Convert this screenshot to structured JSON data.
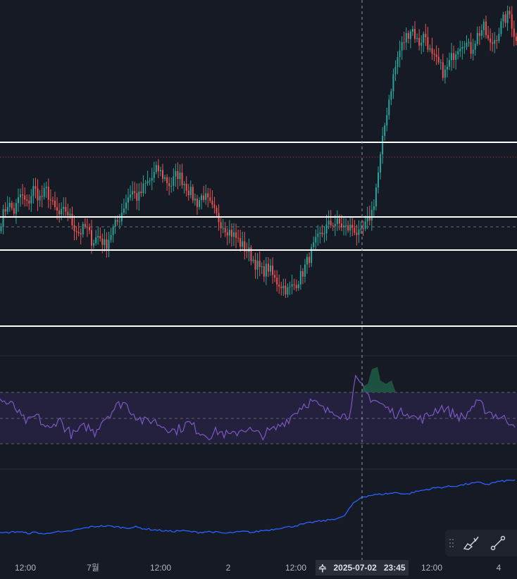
{
  "chart_data": [
    {
      "type": "candlestick",
      "title": "",
      "x_ticks": [
        "12:00",
        "7월",
        "12:00",
        "2",
        "12:00",
        "12:00",
        "4"
      ],
      "price_path": [
        50,
        58,
        54,
        62,
        57,
        65,
        60,
        64,
        56,
        52,
        55,
        48,
        44,
        47,
        40,
        43,
        38,
        45,
        50,
        58,
        64,
        60,
        66,
        69,
        74,
        70,
        66,
        72,
        68,
        63,
        58,
        62,
        57,
        52,
        48,
        45,
        42,
        38,
        35,
        30,
        26,
        28,
        22,
        20,
        17,
        20,
        24,
        31,
        38,
        43,
        47,
        49,
        48,
        46,
        47,
        42,
        48,
        55,
        75,
        98,
        115,
        128,
        135,
        140,
        132,
        137,
        126,
        123,
        118,
        125,
        131,
        134,
        129,
        136,
        140,
        131,
        136,
        143,
        146,
        133
      ],
      "horizontal_lines": [
        "solid",
        "solid",
        "solid",
        "solid"
      ],
      "reference_lines": [
        "dotted-red",
        "dashed-gray"
      ],
      "colors": {
        "up": "#26a69a",
        "down": "#ef5350",
        "level": "#ffffff",
        "bg": "#161a25"
      }
    },
    {
      "type": "line",
      "name": "oscillator",
      "values": [
        62,
        58,
        55,
        44,
        40,
        47,
        38,
        32,
        45,
        35,
        28,
        33,
        37,
        30,
        42,
        48,
        55,
        60,
        52,
        45,
        40,
        43,
        38,
        36,
        32,
        35,
        40,
        34,
        30,
        28,
        32,
        29,
        27,
        33,
        35,
        30,
        28,
        31,
        34,
        40,
        45,
        52,
        58,
        60,
        55,
        50,
        52,
        48,
        45,
        80,
        72,
        64,
        60,
        55,
        50,
        48,
        52,
        45,
        43,
        46,
        52,
        55,
        50,
        47,
        44,
        55,
        58,
        52,
        48,
        45,
        42,
        40
      ],
      "band": [
        "30",
        "70"
      ],
      "colors": {
        "line": "#7e57c2",
        "band_fill": "#24213f"
      }
    },
    {
      "type": "line",
      "name": "cumulative",
      "values": [
        10,
        11,
        12,
        10,
        11,
        9,
        12,
        11,
        13,
        15,
        17,
        18,
        18,
        17,
        16,
        17,
        15,
        14,
        13,
        12,
        13,
        12,
        11,
        12,
        11,
        10,
        11,
        12,
        11,
        13,
        14,
        16,
        17,
        19,
        21,
        23,
        24,
        26,
        28,
        42,
        50,
        52,
        53,
        54,
        55,
        53,
        56,
        58,
        60,
        61,
        62,
        63,
        65,
        66,
        64,
        67,
        68,
        69
      ],
      "colors": {
        "line": "#2962ff"
      }
    }
  ],
  "crosshair": {
    "label_day": "수",
    "label_date": "2025-07-02",
    "label_time": "23:45"
  },
  "toolbar": {
    "tools": [
      "brush-icon",
      "trendline-icon"
    ]
  }
}
